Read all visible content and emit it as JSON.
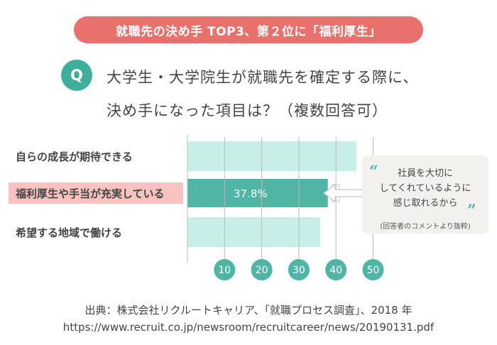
{
  "banner": {
    "title": "就職先の決め手 TOP3、第２位に「福利厚生」"
  },
  "question": {
    "badge": "Q",
    "line1": "大学生・大学院生が就職先を確定する際に、",
    "line2": "決め手になった項目は？（複数回答可）"
  },
  "chart_data": {
    "type": "bar",
    "orientation": "horizontal",
    "categories": [
      "自らの成長が期待できる",
      "福利厚生や手当が充実している",
      "希望する地域で働ける"
    ],
    "values": [
      45.5,
      37.8,
      35.8
    ],
    "highlight_index": 1,
    "data_labels": [
      "",
      "37.8%",
      ""
    ],
    "xticks": [
      "10",
      "20",
      "30",
      "40",
      "50"
    ],
    "xlim": [
      0,
      50
    ],
    "grid": true,
    "colors": {
      "bar": "#c7efe8",
      "highlight": "#4fb5a4",
      "highlight_label_bg": "#f8c2c0",
      "tick_circle": "#4fb5a4",
      "grid": "#bbbbbb"
    }
  },
  "callout": {
    "open_quote": "“",
    "close_quote": "”",
    "line1": "社員を大切に",
    "line2": "してくれているように",
    "line3": "感じ取れるから",
    "note": "(回答者のコメントより抜粋)"
  },
  "source": {
    "line1": "出典：株式会社リクルートキャリア、「就職プロセス調査」、2018 年",
    "line2": "https://www.recruit.co.jp/newsroom/recruitcareer/news/20190131.pdf"
  }
}
